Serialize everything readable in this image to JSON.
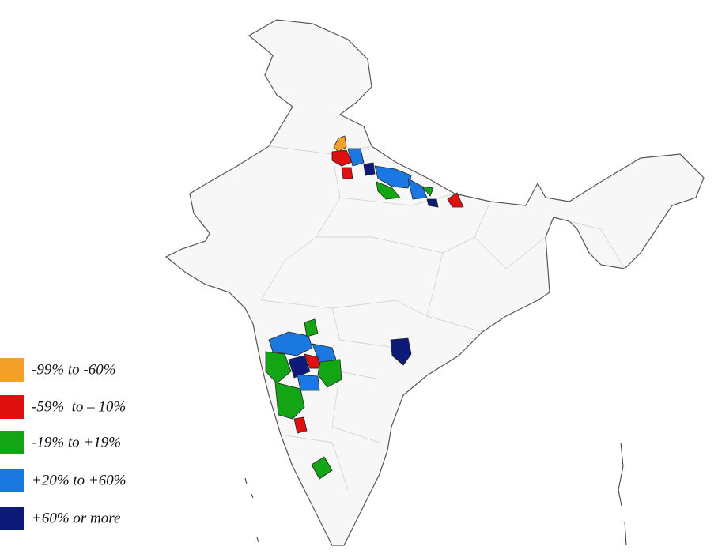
{
  "legend": {
    "items": [
      {
        "label": "-99% to -60%",
        "color": "#f5a02a"
      },
      {
        "label": "-59%  to – 10%",
        "color": "#e01010"
      },
      {
        "label": "-19% to +19%",
        "color": "#14a514"
      },
      {
        "label": "+20% to +60%",
        "color": "#1a78e0"
      },
      {
        "label": "+60% or more",
        "color": "#0e1a78"
      }
    ]
  }
}
